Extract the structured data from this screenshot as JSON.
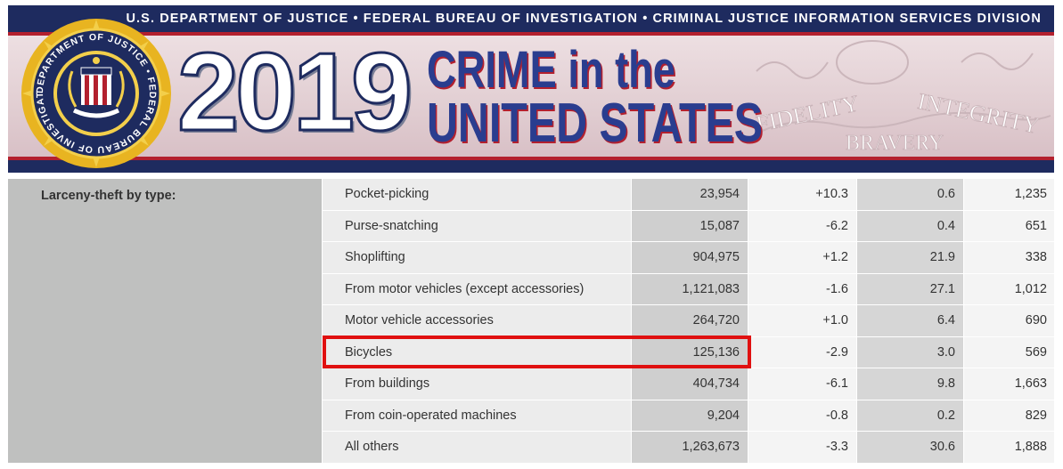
{
  "banner": {
    "agency_line": "U.S. DEPARTMENT OF JUSTICE • FEDERAL BUREAU OF INVESTIGATION • CRIMINAL JUSTICE INFORMATION SERVICES DIVISION",
    "year": "2019",
    "title_line1": "CRIME in the",
    "title_line2": "UNITED STATES",
    "seal_text": "DEPARTMENT OF JUSTICE • FEDERAL BUREAU OF INVESTIGATION",
    "watermark_words": [
      "FIDELITY",
      "BRAVERY",
      "INTEGRITY"
    ],
    "colors": {
      "navy": "#1e2b5f",
      "red": "#b3202e",
      "title_blue": "#2a3d8f",
      "seal_gold": "#e8b421"
    }
  },
  "table": {
    "category": "Larceny-theft by type:",
    "rows": [
      {
        "label": "Pocket-picking",
        "v1": "23,954",
        "v2": "+10.3",
        "v3": "0.6",
        "v4": "1,235"
      },
      {
        "label": "Purse-snatching",
        "v1": "15,087",
        "v2": "-6.2",
        "v3": "0.4",
        "v4": "651"
      },
      {
        "label": "Shoplifting",
        "v1": "904,975",
        "v2": "+1.2",
        "v3": "21.9",
        "v4": "338"
      },
      {
        "label": "From motor vehicles (except accessories)",
        "v1": "1,121,083",
        "v2": "-1.6",
        "v3": "27.1",
        "v4": "1,012"
      },
      {
        "label": "Motor vehicle accessories",
        "v1": "264,720",
        "v2": "+1.0",
        "v3": "6.4",
        "v4": "690"
      },
      {
        "label": "Bicycles",
        "v1": "125,136",
        "v2": "-2.9",
        "v3": "3.0",
        "v4": "569"
      },
      {
        "label": "From buildings",
        "v1": "404,734",
        "v2": "-6.1",
        "v3": "9.8",
        "v4": "1,663"
      },
      {
        "label": "From coin-operated machines",
        "v1": "9,204",
        "v2": "-0.8",
        "v3": "0.2",
        "v4": "829"
      },
      {
        "label": "All others",
        "v1": "1,263,673",
        "v2": "-3.3",
        "v3": "30.6",
        "v4": "1,888"
      }
    ],
    "highlight_color": "#e01010"
  }
}
